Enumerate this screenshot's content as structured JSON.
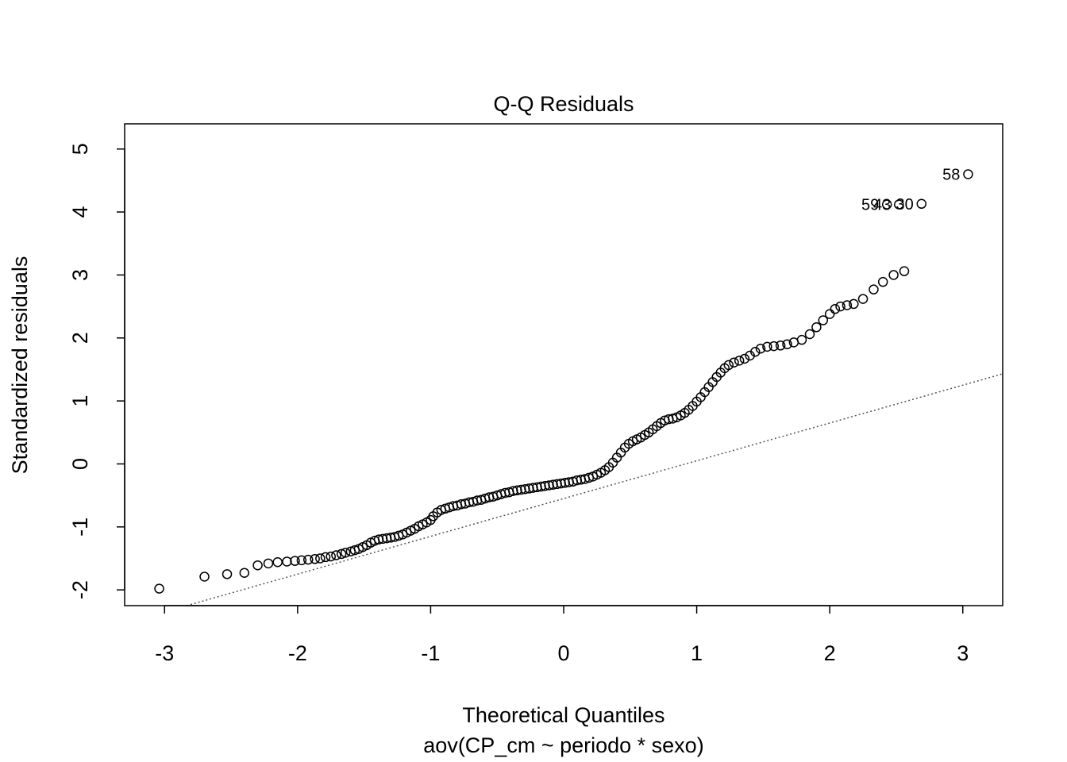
{
  "chart_data": {
    "type": "scatter",
    "title": "Q-Q Residuals",
    "xlabel": "Theoretical Quantiles",
    "subtitle": "aov(CP_cm ~ periodo * sexo)",
    "ylabel": "Standardized residuals",
    "xlim": [
      -3.3,
      3.3
    ],
    "ylim": [
      -2.25,
      5.4
    ],
    "x_ticks": [
      -3,
      -2,
      -1,
      0,
      1,
      2,
      3
    ],
    "x_tick_labels": [
      "-3",
      "-2",
      "-1",
      "0",
      "1",
      "2",
      "3"
    ],
    "y_ticks": [
      -2,
      -1,
      0,
      1,
      2,
      3,
      4,
      5
    ],
    "y_tick_labels": [
      "-2",
      "-1",
      "0",
      "1",
      "2",
      "3",
      "4",
      "5"
    ],
    "grid": false,
    "reference_line": {
      "slope": 0.6,
      "intercept": -0.55,
      "style": "dotted",
      "color": "#555555"
    },
    "points": [
      [
        -3.04,
        -1.98
      ],
      [
        -2.7,
        -1.79
      ],
      [
        -2.53,
        -1.75
      ],
      [
        -2.4,
        -1.73
      ],
      [
        -2.3,
        -1.61
      ],
      [
        -2.22,
        -1.58
      ],
      [
        -2.15,
        -1.56
      ],
      [
        -2.08,
        -1.55
      ],
      [
        -2.02,
        -1.54
      ],
      [
        -1.97,
        -1.53
      ],
      [
        -1.92,
        -1.52
      ],
      [
        -1.87,
        -1.51
      ],
      [
        -1.83,
        -1.5
      ],
      [
        -1.79,
        -1.48
      ],
      [
        -1.75,
        -1.47
      ],
      [
        -1.71,
        -1.45
      ],
      [
        -1.67,
        -1.43
      ],
      [
        -1.64,
        -1.41
      ],
      [
        -1.6,
        -1.39
      ],
      [
        -1.57,
        -1.37
      ],
      [
        -1.54,
        -1.35
      ],
      [
        -1.51,
        -1.32
      ],
      [
        -1.48,
        -1.29
      ],
      [
        -1.45,
        -1.25
      ],
      [
        -1.42,
        -1.22
      ],
      [
        -1.39,
        -1.2
      ],
      [
        -1.36,
        -1.19
      ],
      [
        -1.33,
        -1.18
      ],
      [
        -1.3,
        -1.17
      ],
      [
        -1.27,
        -1.16
      ],
      [
        -1.24,
        -1.14
      ],
      [
        -1.21,
        -1.12
      ],
      [
        -1.18,
        -1.09
      ],
      [
        -1.15,
        -1.06
      ],
      [
        -1.12,
        -1.03
      ],
      [
        -1.09,
        -0.99
      ],
      [
        -1.06,
        -0.96
      ],
      [
        -1.03,
        -0.93
      ],
      [
        -1.0,
        -0.89
      ],
      [
        -0.98,
        -0.83
      ],
      [
        -0.95,
        -0.77
      ],
      [
        -0.92,
        -0.73
      ],
      [
        -0.89,
        -0.71
      ],
      [
        -0.86,
        -0.69
      ],
      [
        -0.83,
        -0.67
      ],
      [
        -0.8,
        -0.66
      ],
      [
        -0.77,
        -0.64
      ],
      [
        -0.74,
        -0.63
      ],
      [
        -0.71,
        -0.61
      ],
      [
        -0.68,
        -0.6
      ],
      [
        -0.65,
        -0.58
      ],
      [
        -0.62,
        -0.57
      ],
      [
        -0.59,
        -0.55
      ],
      [
        -0.56,
        -0.53
      ],
      [
        -0.53,
        -0.52
      ],
      [
        -0.5,
        -0.5
      ],
      [
        -0.47,
        -0.48
      ],
      [
        -0.44,
        -0.46
      ],
      [
        -0.41,
        -0.45
      ],
      [
        -0.38,
        -0.43
      ],
      [
        -0.35,
        -0.42
      ],
      [
        -0.32,
        -0.41
      ],
      [
        -0.29,
        -0.4
      ],
      [
        -0.26,
        -0.39
      ],
      [
        -0.23,
        -0.38
      ],
      [
        -0.2,
        -0.37
      ],
      [
        -0.17,
        -0.36
      ],
      [
        -0.14,
        -0.35
      ],
      [
        -0.11,
        -0.34
      ],
      [
        -0.08,
        -0.33
      ],
      [
        -0.05,
        -0.32
      ],
      [
        -0.02,
        -0.31
      ],
      [
        0.01,
        -0.3
      ],
      [
        0.04,
        -0.29
      ],
      [
        0.07,
        -0.28
      ],
      [
        0.1,
        -0.26
      ],
      [
        0.13,
        -0.25
      ],
      [
        0.16,
        -0.24
      ],
      [
        0.19,
        -0.22
      ],
      [
        0.22,
        -0.2
      ],
      [
        0.25,
        -0.17
      ],
      [
        0.28,
        -0.14
      ],
      [
        0.31,
        -0.1
      ],
      [
        0.34,
        -0.05
      ],
      [
        0.37,
        0.02
      ],
      [
        0.4,
        0.1
      ],
      [
        0.43,
        0.18
      ],
      [
        0.46,
        0.26
      ],
      [
        0.49,
        0.32
      ],
      [
        0.52,
        0.36
      ],
      [
        0.55,
        0.39
      ],
      [
        0.58,
        0.42
      ],
      [
        0.61,
        0.46
      ],
      [
        0.64,
        0.5
      ],
      [
        0.67,
        0.55
      ],
      [
        0.7,
        0.6
      ],
      [
        0.73,
        0.65
      ],
      [
        0.76,
        0.69
      ],
      [
        0.79,
        0.71
      ],
      [
        0.82,
        0.72
      ],
      [
        0.85,
        0.74
      ],
      [
        0.88,
        0.77
      ],
      [
        0.91,
        0.81
      ],
      [
        0.94,
        0.86
      ],
      [
        0.97,
        0.92
      ],
      [
        1.0,
        0.99
      ],
      [
        1.03,
        1.06
      ],
      [
        1.06,
        1.14
      ],
      [
        1.09,
        1.22
      ],
      [
        1.12,
        1.3
      ],
      [
        1.15,
        1.38
      ],
      [
        1.18,
        1.45
      ],
      [
        1.21,
        1.52
      ],
      [
        1.24,
        1.57
      ],
      [
        1.28,
        1.61
      ],
      [
        1.32,
        1.64
      ],
      [
        1.36,
        1.67
      ],
      [
        1.4,
        1.72
      ],
      [
        1.44,
        1.78
      ],
      [
        1.48,
        1.83
      ],
      [
        1.53,
        1.86
      ],
      [
        1.58,
        1.87
      ],
      [
        1.63,
        1.88
      ],
      [
        1.68,
        1.9
      ],
      [
        1.73,
        1.93
      ],
      [
        1.79,
        1.97
      ],
      [
        1.85,
        2.06
      ],
      [
        1.9,
        2.17
      ],
      [
        1.95,
        2.28
      ],
      [
        2.0,
        2.38
      ],
      [
        2.04,
        2.46
      ],
      [
        2.08,
        2.5
      ],
      [
        2.13,
        2.52
      ],
      [
        2.18,
        2.54
      ],
      [
        2.25,
        2.62
      ],
      [
        2.33,
        2.77
      ],
      [
        2.4,
        2.89
      ],
      [
        2.48,
        3.0
      ],
      [
        2.56,
        3.06
      ],
      [
        2.43,
        4.12
      ],
      [
        2.52,
        4.12
      ],
      [
        2.69,
        4.13
      ],
      [
        3.04,
        4.6
      ]
    ],
    "annotations": [
      {
        "text": "59",
        "x": 2.43,
        "y": 4.12
      },
      {
        "text": "43",
        "x": 2.52,
        "y": 4.12
      },
      {
        "text": "30",
        "x": 2.69,
        "y": 4.13
      },
      {
        "text": "58",
        "x": 3.04,
        "y": 4.6
      }
    ]
  }
}
